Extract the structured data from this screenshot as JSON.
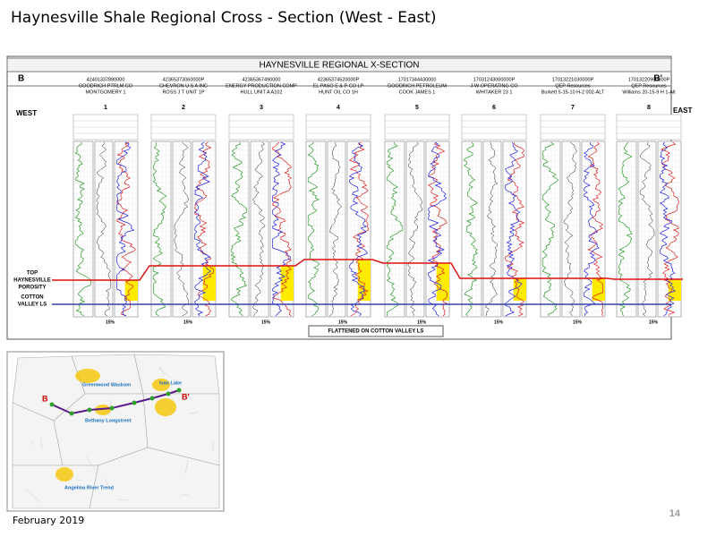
{
  "slide": {
    "title": "Haynesville Shale Regional Cross - Section (West - East)",
    "footer_date": "February 2019",
    "page_number": "14"
  },
  "section": {
    "title": "HAYNESVILLE REGIONAL X-SECTION",
    "left_label": "B",
    "right_label": "B'",
    "west": "WEST",
    "east": "EAST",
    "top_label": [
      "TOP",
      "HAYNESVILLE",
      "POROSITY"
    ],
    "bottom_label": [
      "COTTON",
      "VALLEY LS"
    ],
    "datum": "FLATTENED ON COTTON VALLEY LS",
    "wells": [
      {
        "number": "1",
        "api": "42401337880000",
        "operator": "GOODRICH PTRLM CO",
        "name": "MONTGOMERY 1",
        "scale": "15%"
      },
      {
        "number": "2",
        "api": "42365373060000P",
        "operator": "CHEVRON U S A INC",
        "name": "ROSS J T UNIT 1P",
        "scale": "15%"
      },
      {
        "number": "3",
        "api": "42365367490000",
        "operator": "ENERGY PRODUCTION COMP",
        "name": "HULL UNIT A A102",
        "scale": "15%"
      },
      {
        "number": "4",
        "api": "42365374520000P",
        "operator": "EL PASO E & P CO LP",
        "name": "HUNT OIL CO 1H",
        "scale": "15%"
      },
      {
        "number": "5",
        "api": "17017344430000",
        "operator": "GOODRICH PETROLEUM",
        "name": "COOK JAMES 1",
        "scale": "15%"
      },
      {
        "number": "6",
        "api": "17031243000000P",
        "operator": "J-W OPERATING CO",
        "name": "WHITAKER 23 1",
        "scale": "15%"
      },
      {
        "number": "7",
        "api": "17013221030000P",
        "operator": "QEP Resources",
        "name": "Burkett 5-15-10 H-2 002-ALT",
        "scale": "15%"
      },
      {
        "number": "8",
        "api": "17013220960000P",
        "operator": "QEP Resources",
        "name": "Williams 20-15-9 H 1-Alt",
        "scale": "15%"
      }
    ]
  },
  "map": {
    "start": "B",
    "end": "B'",
    "labels": [
      "Greenwood Waskom",
      "Bethany Longstreet",
      "Ivan Lake",
      "Angelina River Trend"
    ]
  }
}
